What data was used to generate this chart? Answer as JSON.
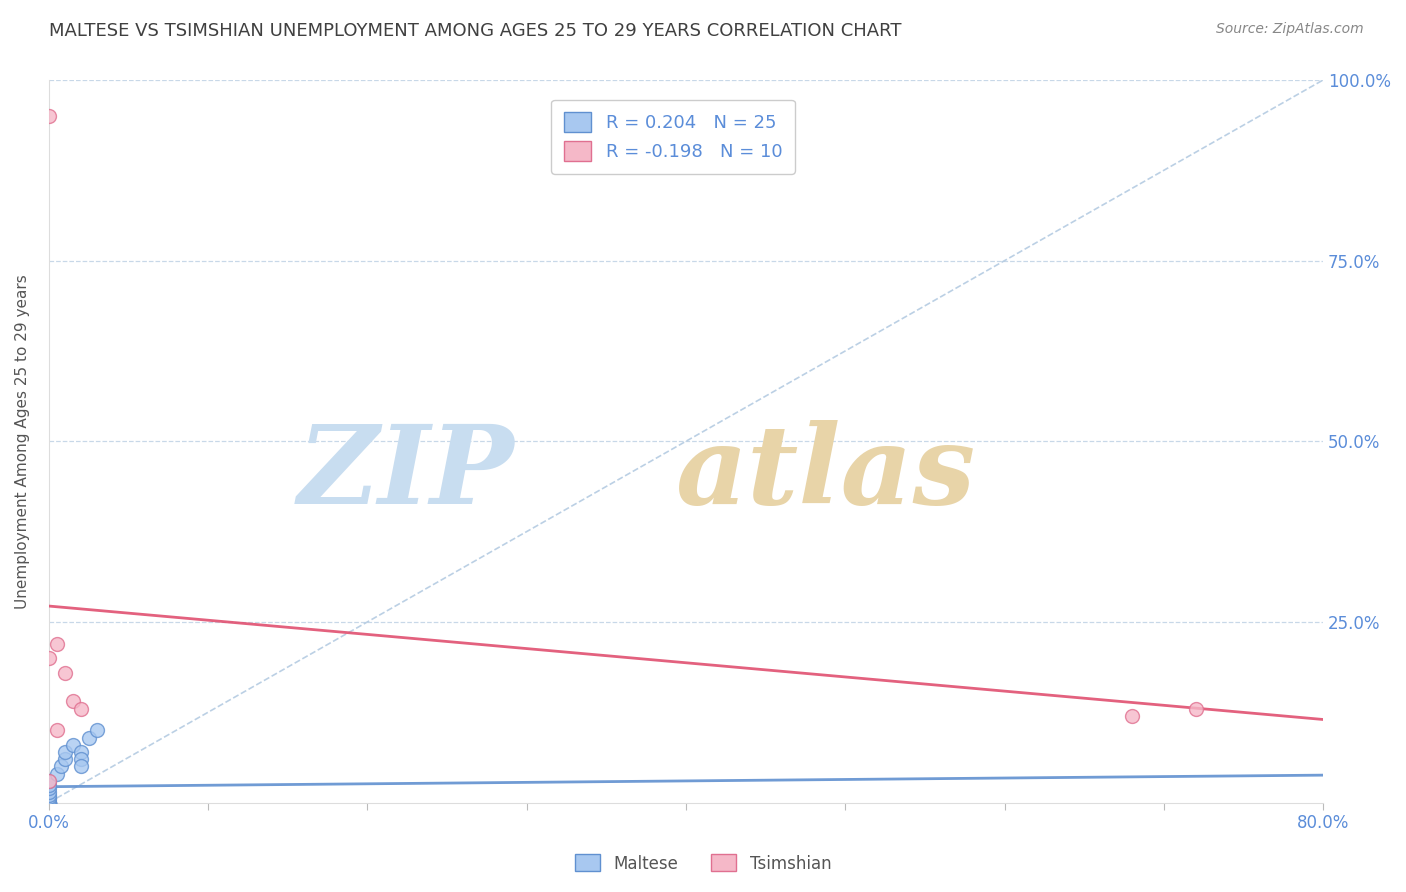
{
  "title": "MALTESE VS TSIMSHIAN UNEMPLOYMENT AMONG AGES 25 TO 29 YEARS CORRELATION CHART",
  "source": "Source: ZipAtlas.com",
  "ylabel_text": "Unemployment Among Ages 25 to 29 years",
  "x_ticks": [
    0.0,
    0.1,
    0.2,
    0.3,
    0.4,
    0.5,
    0.6,
    0.7,
    0.8
  ],
  "y_ticks": [
    0.0,
    0.25,
    0.5,
    0.75,
    1.0
  ],
  "xlim": [
    0.0,
    0.8
  ],
  "ylim": [
    0.0,
    1.0
  ],
  "maltese_x": [
    0.0,
    0.0,
    0.0,
    0.0,
    0.0,
    0.0,
    0.0,
    0.0,
    0.0,
    0.0,
    0.0,
    0.0,
    0.0,
    0.0,
    0.0,
    0.005,
    0.008,
    0.01,
    0.01,
    0.015,
    0.02,
    0.02,
    0.02,
    0.025,
    0.03
  ],
  "maltese_y": [
    0.0,
    0.0,
    0.0,
    0.0,
    0.0,
    0.0,
    0.0,
    0.0,
    0.005,
    0.008,
    0.01,
    0.015,
    0.02,
    0.025,
    0.03,
    0.04,
    0.05,
    0.06,
    0.07,
    0.08,
    0.07,
    0.06,
    0.05,
    0.09,
    0.1
  ],
  "tsimshian_x": [
    0.0,
    0.0,
    0.005,
    0.01,
    0.015,
    0.02,
    0.68,
    0.72,
    0.0,
    0.005
  ],
  "tsimshian_y": [
    0.95,
    0.2,
    0.22,
    0.18,
    0.14,
    0.13,
    0.12,
    0.13,
    0.03,
    0.1
  ],
  "maltese_color": "#a8c8f0",
  "tsimshian_color": "#f5b8c8",
  "maltese_edge_color": "#6090d0",
  "tsimshian_edge_color": "#e07090",
  "trend_maltese_color": "#6090d0",
  "trend_tsimshian_color": "#e05070",
  "diagonal_color": "#b0c8e0",
  "R_maltese": 0.204,
  "N_maltese": 25,
  "R_tsimshian": -0.198,
  "N_tsimshian": 10,
  "watermark_zip_color": "#c8ddf0",
  "watermark_atlas_color": "#e8d0b0",
  "background_color": "#ffffff",
  "title_color": "#404040",
  "axis_label_color": "#555555",
  "tick_color": "#5b8dd9",
  "grid_color": "#c8d8e8",
  "marker_size": 100,
  "trend_maltese_start_y": 0.022,
  "trend_maltese_end_y": 0.038,
  "trend_tsimshian_start_y": 0.272,
  "trend_tsimshian_end_y": 0.115
}
